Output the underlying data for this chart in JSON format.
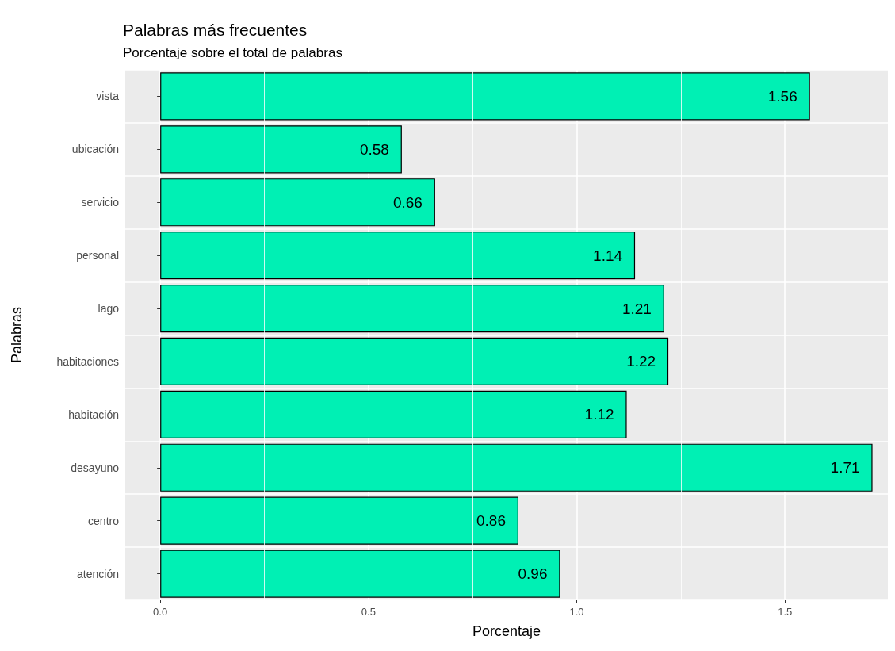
{
  "chart_data": {
    "type": "bar",
    "orientation": "horizontal",
    "title": "Palabras más frecuentes",
    "subtitle": "Porcentaje sobre el total de palabras",
    "xlabel": "Porcentaje",
    "ylabel": "Palabras",
    "categories": [
      "vista",
      "ubicación",
      "servicio",
      "personal",
      "lago",
      "habitaciones",
      "habitación",
      "desayuno",
      "centro",
      "atención"
    ],
    "values": [
      1.56,
      0.58,
      0.66,
      1.14,
      1.21,
      1.22,
      1.12,
      1.71,
      0.86,
      0.96
    ],
    "color": "#00f0b4",
    "data_labels": true,
    "xlim": [
      -0.084,
      1.747
    ],
    "xticks": [
      {
        "value": 0,
        "label": "0.0"
      },
      {
        "value": 0.5,
        "label": "0.5"
      },
      {
        "value": 1,
        "label": "1.0"
      },
      {
        "value": 1.5,
        "label": "1.5"
      }
    ],
    "grid": true
  }
}
